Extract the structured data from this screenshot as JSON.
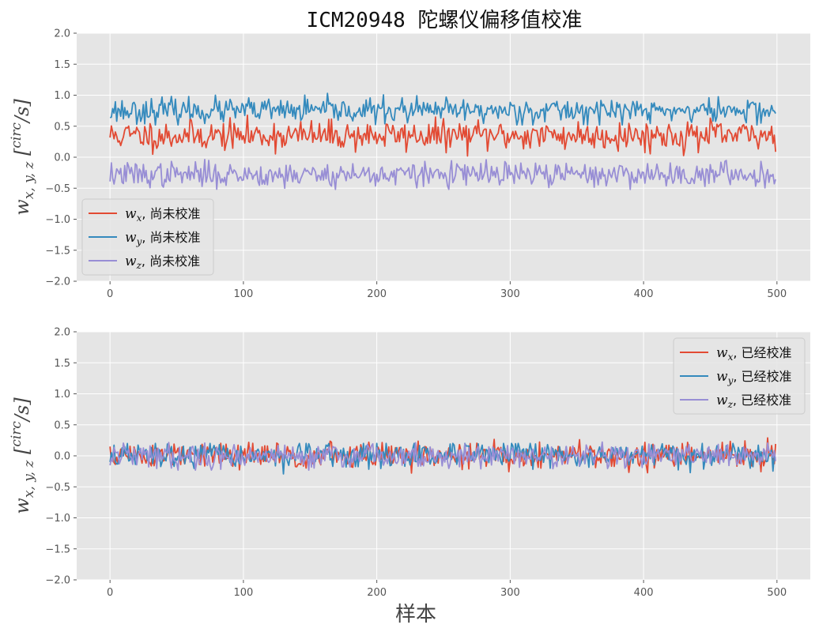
{
  "title": "ICM20948 陀螺仪偏移值校准",
  "colors": {
    "wx": "#e24a33",
    "wy": "#348abd",
    "wz": "#988ed5",
    "panel": "#e5e5e5",
    "grid": "#ffffff"
  },
  "chart_data": [
    {
      "type": "line",
      "title": "ICM20948 陀螺仪偏移值校准",
      "xlabel": "",
      "ylabel": "w_{x,y,z} [^{circ}/s]",
      "xlim": [
        -25,
        525
      ],
      "ylim": [
        -2.0,
        2.0
      ],
      "xticks": [
        0,
        100,
        200,
        300,
        400,
        500
      ],
      "yticks": [
        -2.0,
        -1.5,
        -1.0,
        -0.5,
        0.0,
        0.5,
        1.0,
        1.5,
        2.0
      ],
      "xtick_labels": [
        "0",
        "100",
        "200",
        "300",
        "400",
        "500"
      ],
      "ytick_labels": [
        "−2.0",
        "−1.5",
        "−1.0",
        "−0.5",
        "0.0",
        "0.5",
        "1.0",
        "1.5",
        "2.0"
      ],
      "grid": true,
      "legend": "lower-left",
      "n_samples": 500,
      "series": [
        {
          "key": "wx",
          "name": "w_x, 尚未校准",
          "label_var": "w",
          "label_sub": "x",
          "label_text": ", 尚未校准",
          "mean": 0.35,
          "std": 0.12,
          "seed": 11,
          "min": 0.02,
          "max": 0.68
        },
        {
          "key": "wy",
          "name": "w_y, 尚未校准",
          "label_var": "w",
          "label_sub": "y",
          "label_text": ", 尚未校准",
          "mean": 0.75,
          "std": 0.1,
          "seed": 23,
          "min": 0.52,
          "max": 1.03
        },
        {
          "key": "wz",
          "name": "w_z, 尚未校准",
          "label_var": "w",
          "label_sub": "z",
          "label_text": ", 尚未校准",
          "mean": -0.28,
          "std": 0.1,
          "seed": 37,
          "min": -0.52,
          "max": 0.05
        }
      ]
    },
    {
      "type": "line",
      "title": "",
      "xlabel": "样本",
      "ylabel": "w_{x,y,z} [^{circ}/s]",
      "xlim": [
        -25,
        525
      ],
      "ylim": [
        -2.0,
        2.0
      ],
      "xticks": [
        0,
        100,
        200,
        300,
        400,
        500
      ],
      "yticks": [
        -2.0,
        -1.5,
        -1.0,
        -0.5,
        0.0,
        0.5,
        1.0,
        1.5,
        2.0
      ],
      "xtick_labels": [
        "0",
        "100",
        "200",
        "300",
        "400",
        "500"
      ],
      "ytick_labels": [
        "−2.0",
        "−1.5",
        "−1.0",
        "−0.5",
        "0.0",
        "0.5",
        "1.0",
        "1.5",
        "2.0"
      ],
      "grid": true,
      "legend": "upper-right",
      "n_samples": 500,
      "series": [
        {
          "key": "wx",
          "name": "w_x, 已经校准",
          "label_var": "w",
          "label_sub": "x",
          "label_text": ", 已经校准",
          "mean": 0.0,
          "std": 0.11,
          "seed": 51,
          "min": -0.3,
          "max": 0.35
        },
        {
          "key": "wy",
          "name": "w_y, 已经校准",
          "label_var": "w",
          "label_sub": "y",
          "label_text": ", 已经校准",
          "mean": 0.0,
          "std": 0.1,
          "seed": 67,
          "min": -0.34,
          "max": 0.2
        },
        {
          "key": "wz",
          "name": "w_z, 已经校准",
          "label_var": "w",
          "label_sub": "z",
          "label_text": ", 已经校准",
          "mean": 0.0,
          "std": 0.1,
          "seed": 79,
          "min": -0.23,
          "max": 0.34
        }
      ]
    }
  ]
}
